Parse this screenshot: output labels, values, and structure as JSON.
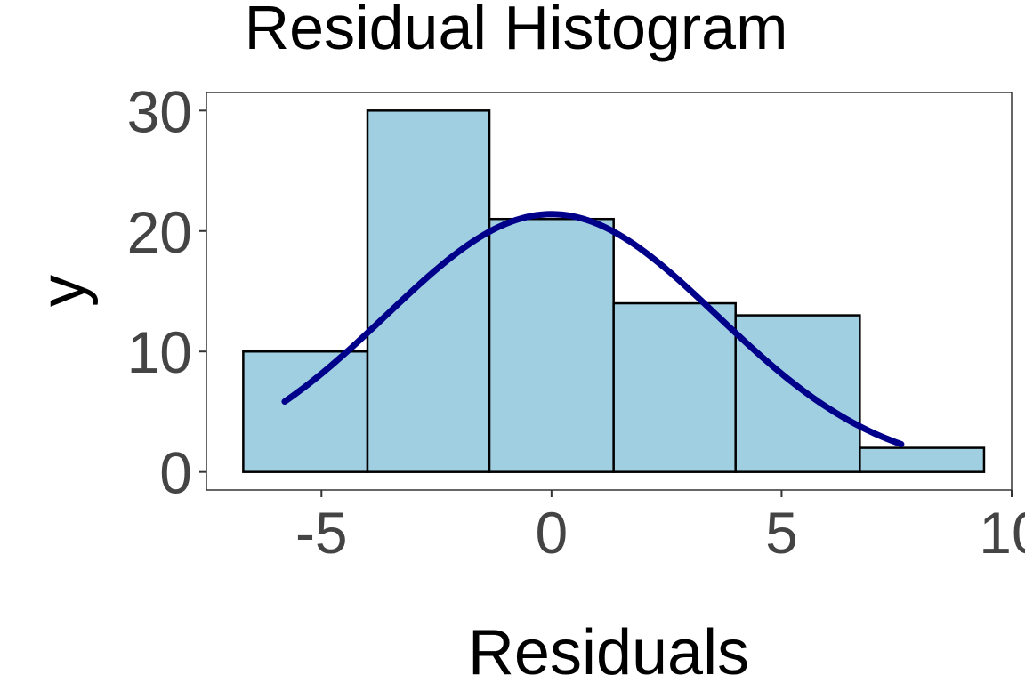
{
  "chart_data": {
    "type": "bar",
    "title": "Residual Histogram",
    "xlabel": "Residuals",
    "ylabel": "y",
    "bins": [
      {
        "x0": -6.7,
        "x1": -4.0,
        "count": 10
      },
      {
        "x0": -4.0,
        "x1": -1.35,
        "count": 30
      },
      {
        "x0": -1.35,
        "x1": 1.35,
        "count": 21
      },
      {
        "x0": 1.35,
        "x1": 4.0,
        "count": 14
      },
      {
        "x0": 4.0,
        "x1": 6.7,
        "count": 13
      },
      {
        "x0": 6.7,
        "x1": 9.4,
        "count": 2
      }
    ],
    "overlay": {
      "type": "normal-curve",
      "mean": 0,
      "sd": 3.6,
      "peak": 21.4,
      "x_range": [
        -5.8,
        7.6
      ],
      "color": "#00008b"
    },
    "xlim": [
      -7.5,
      10
    ],
    "ylim": [
      -1.5,
      31.5
    ],
    "xticks": [
      -5,
      0,
      5,
      10
    ],
    "xtick_labels": [
      "-5",
      "0",
      "5",
      "10"
    ],
    "yticks": [
      0,
      10,
      20,
      30
    ],
    "ytick_labels": [
      "0",
      "10",
      "20",
      "30"
    ],
    "bar_fill": "#a1cfe2",
    "bar_edge": "#000000",
    "grid": false
  }
}
